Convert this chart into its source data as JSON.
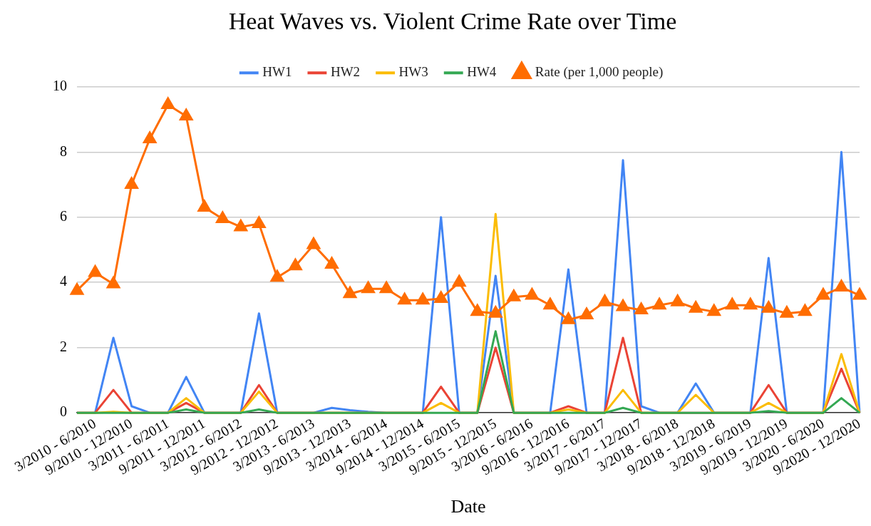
{
  "chart_data": {
    "type": "line",
    "title": "Heat Waves vs. Violent Crime Rate over Time",
    "xlabel": "Date",
    "categories": [
      null,
      "3/2010 - 6/2010",
      null,
      "9/2010 - 12/2010",
      null,
      "3/2011 - 6/2011",
      null,
      "9/2011 - 12/2011",
      null,
      "3/2012 - 6/2012",
      null,
      "9/2012 - 12/2012",
      null,
      "3/2013 - 6/2013",
      null,
      "9/2013 - 12/2013",
      null,
      "3/2014 - 6/2014",
      null,
      "9/2014 - 12/2014",
      null,
      "3/2015 - 6/2015",
      null,
      "9/2015 - 12/2015",
      null,
      "3/2016 - 6/2016",
      null,
      "9/2016 - 12/2016",
      null,
      "3/2017 - 6/2017",
      null,
      "9/2017 - 12/2017",
      null,
      "3/2018 - 6/2018",
      null,
      "9/2018 - 12/2018",
      null,
      "3/2019 - 6/2019",
      null,
      "9/2019 - 12/2019",
      null,
      "3/2020 - 6/2020",
      null,
      "9/2020 - 12/2020"
    ],
    "series": [
      {
        "name": "HW1",
        "color": "#4285f4",
        "marker": "none",
        "values": [
          0,
          0,
          2.3,
          0.2,
          0,
          0,
          1.1,
          0,
          0,
          0,
          3.05,
          0,
          0,
          0,
          0.15,
          0.08,
          0.03,
          0,
          0,
          0,
          6.0,
          0,
          0,
          4.2,
          0,
          0,
          0,
          4.4,
          0,
          0,
          7.75,
          0.2,
          0,
          0,
          0.9,
          0,
          0,
          0,
          4.75,
          0,
          0,
          0,
          8.0,
          0
        ]
      },
      {
        "name": "HW2",
        "color": "#ea4335",
        "marker": "none",
        "values": [
          0,
          0,
          0.7,
          0,
          0,
          0,
          0.3,
          0,
          0,
          0,
          0.85,
          0,
          0,
          0,
          0,
          0,
          0,
          0,
          0,
          0,
          0.8,
          0,
          0,
          2.0,
          0,
          0,
          0,
          0.2,
          0,
          0,
          2.3,
          0,
          0,
          0,
          0,
          0,
          0,
          0,
          0.85,
          0,
          0,
          0,
          1.35,
          0
        ]
      },
      {
        "name": "HW3",
        "color": "#fbbc04",
        "marker": "none",
        "values": [
          0,
          0,
          0.03,
          0,
          0,
          0,
          0.45,
          0,
          0,
          0,
          0.65,
          0,
          0,
          0,
          0,
          0,
          0,
          0,
          0,
          0,
          0.3,
          0,
          0,
          6.1,
          0,
          0,
          0,
          0.1,
          0,
          0,
          0.7,
          0,
          0,
          0,
          0.55,
          0,
          0,
          0,
          0.3,
          0,
          0,
          0,
          1.8,
          0
        ]
      },
      {
        "name": "HW4",
        "color": "#34a853",
        "marker": "none",
        "values": [
          0,
          0,
          0,
          0,
          0,
          0,
          0.1,
          0,
          0,
          0,
          0.1,
          0,
          0,
          0,
          0,
          0,
          0,
          0,
          0,
          0,
          0,
          0,
          0,
          2.5,
          0,
          0,
          0,
          0,
          0,
          0,
          0.15,
          0,
          0,
          0,
          0,
          0,
          0,
          0,
          0.05,
          0,
          0,
          0,
          0.45,
          0
        ]
      },
      {
        "name": "Rate (per 1,000 people)",
        "color": "#ff6d01",
        "marker": "triangle",
        "values": [
          3.75,
          4.3,
          3.95,
          7.0,
          8.4,
          9.45,
          9.1,
          6.3,
          5.95,
          5.7,
          5.8,
          4.15,
          4.5,
          5.15,
          4.55,
          3.65,
          3.8,
          3.8,
          3.45,
          3.45,
          3.5,
          4.0,
          3.1,
          3.05,
          3.55,
          3.6,
          3.3,
          2.85,
          3.0,
          3.4,
          3.25,
          3.15,
          3.3,
          3.4,
          3.2,
          3.1,
          3.3,
          3.3,
          3.2,
          3.05,
          3.1,
          3.6,
          3.85,
          3.6
        ]
      }
    ],
    "ylim": [
      0,
      10
    ],
    "yticks": [
      0,
      2,
      4,
      6,
      8,
      10
    ],
    "grid": "y",
    "legend": "top"
  }
}
